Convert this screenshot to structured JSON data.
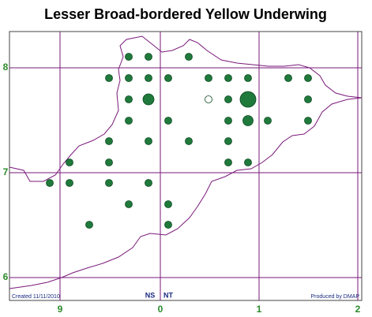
{
  "title": "Lesser Broad-bordered Yellow Underwing",
  "x_labels": [
    "9",
    "0",
    "1",
    "2"
  ],
  "y_labels": [
    "8",
    "7",
    "6"
  ],
  "footer": {
    "created": "Created 11/11/2010",
    "left_square": "NS",
    "right_square": "NT",
    "credit": "Produced by DMAP"
  }
}
